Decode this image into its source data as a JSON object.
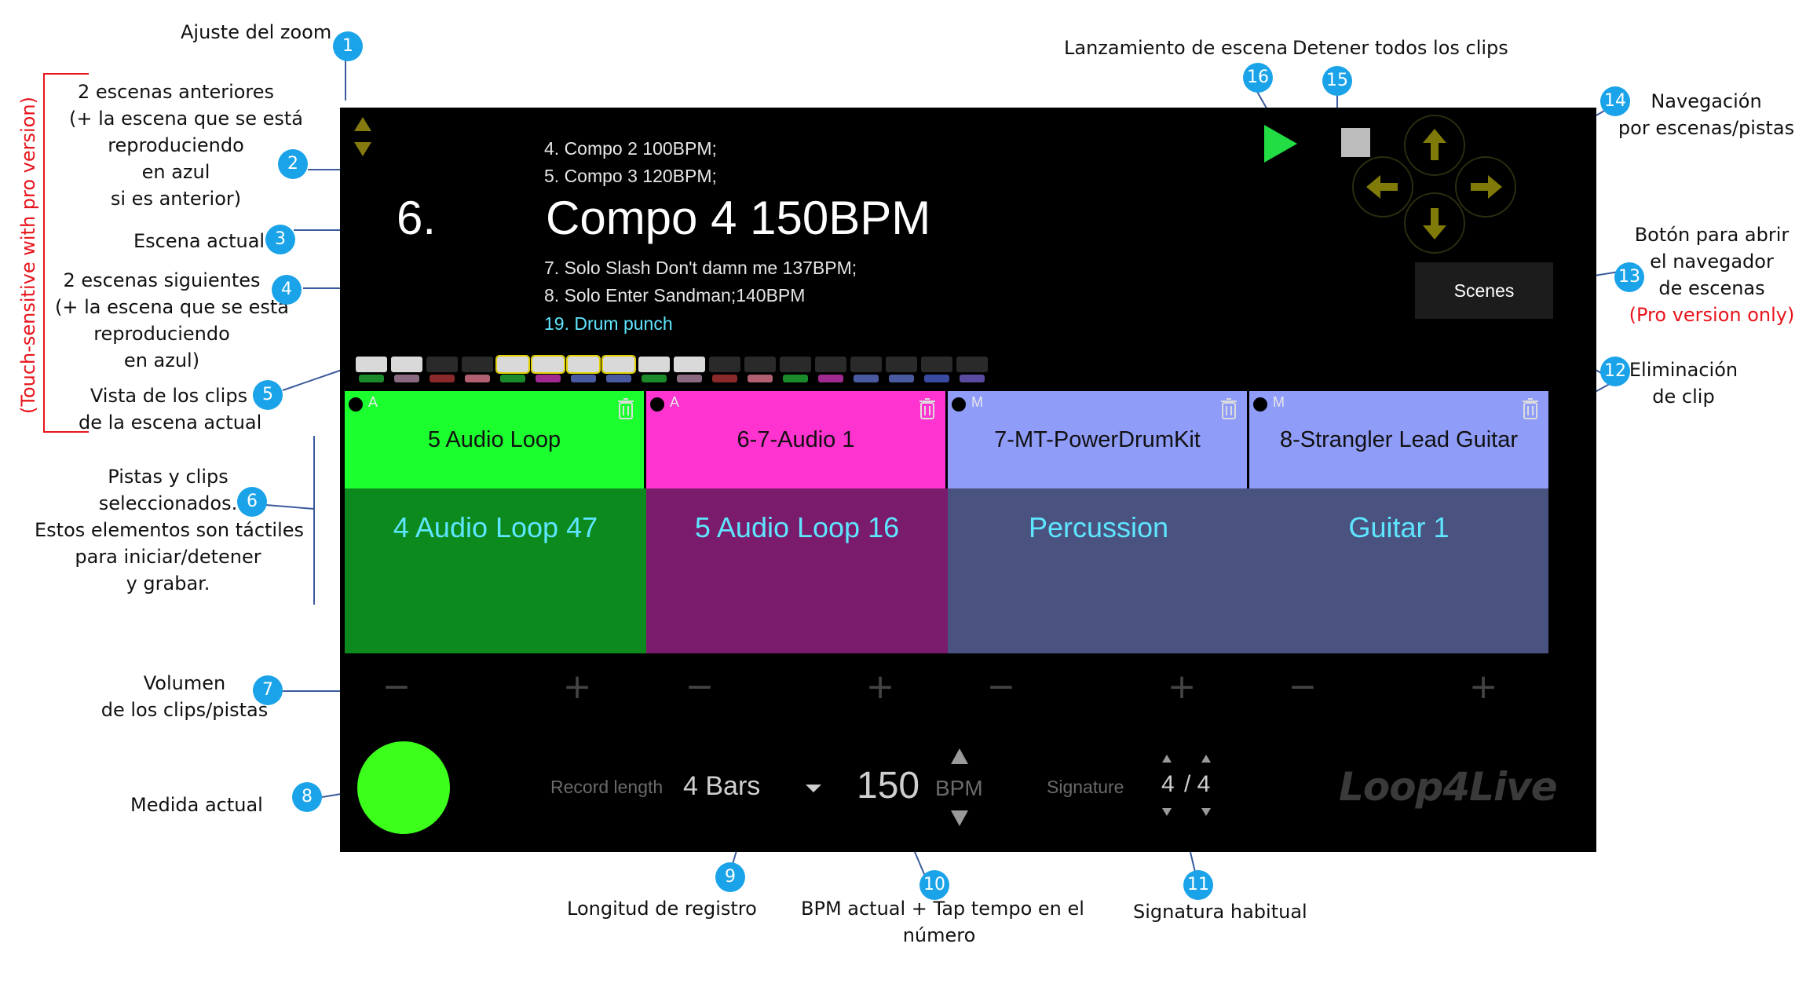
{
  "annotations": {
    "zoom": "Ajuste del zoom",
    "prev_scenes": [
      "2 escenas anteriores",
      "(+ la escena que se está",
      "reproduciendo",
      "en azul",
      "si es anterior)"
    ],
    "current_scene": "Escena actual",
    "next_scenes": [
      "2 escenas siguientes",
      "(+ la escena que se está",
      "reproduciendo",
      "en azul)"
    ],
    "clips_view": [
      "Vista de los clips",
      "de la escena actual"
    ],
    "tracks": [
      "Pistas y clips",
      "seleccionados.",
      "Estos elementos son táctiles",
      "para iniciar/detener",
      "y grabar."
    ],
    "volume": [
      "Volumen",
      "de los clips/pistas"
    ],
    "measure": "Medida actual",
    "record_length": "Longitud de registro",
    "bpm": [
      "BPM actual + Tap tempo en el",
      "número"
    ],
    "signature": "Signatura habitual",
    "scene_launch": "Lanzamiento de escena",
    "stop_all": "Detener todos los clips",
    "navigation": [
      "Navegación",
      "por escenas/pistas"
    ],
    "scene_browser": [
      "Botón para abrir",
      "el navegador",
      "de escenas"
    ],
    "pro_only": "(Pro version only)",
    "clip_delete": [
      "Eliminación",
      "de clip"
    ],
    "touch_sensitive": "(Touch-sensitive with pro version)",
    "badges": [
      "1",
      "2",
      "3",
      "4",
      "5",
      "6",
      "7",
      "8",
      "9",
      "10",
      "11",
      "12",
      "13",
      "14",
      "15",
      "16"
    ]
  },
  "app": {
    "prev_scenes": [
      "4. Compo 2 100BPM;",
      "5. Compo 3 120BPM;"
    ],
    "current_number": "6.",
    "current_name": "Compo 4 150BPM",
    "next_scenes": [
      "7. Solo Slash Don't damn me 137BPM;",
      "8. Solo Enter Sandman;140BPM"
    ],
    "playing_scene": "19. Drum punch",
    "scenes_button": "Scenes",
    "clips": [
      {
        "mode": "A",
        "name": "5 Audio Loop",
        "track": "4 Audio Loop 47",
        "head": "#1cff2e",
        "body": "#0c8a1e"
      },
      {
        "mode": "A",
        "name": "6-7-Audio 1",
        "track": "5 Audio Loop 16",
        "head": "#ff33cf",
        "body": "#7a1c6b"
      },
      {
        "mode": "M",
        "name": "7-MT-PowerDrumKit",
        "track": "Percussion",
        "head": "#8f9cf8",
        "body": "#4a5380"
      },
      {
        "mode": "M",
        "name": "8-Strangler Lead Guitar",
        "track": "Guitar 1",
        "head": "#8f9cf8",
        "body": "#4a5380"
      }
    ],
    "volume_minus": "−",
    "volume_plus": "+",
    "record_length_label": "Record length",
    "record_length_value": "4 Bars",
    "bpm_value": "150",
    "bpm_label": "BPM",
    "signature_label": "Signature",
    "signature_num": "4",
    "signature_den": "/ 4",
    "logo": "Loop4Live",
    "colors": {
      "play": "#22dd44",
      "stop": "#bdbdbd",
      "nav_arrow": "#807a08",
      "measure": "#3dff1c",
      "zoom": "#857a10"
    }
  }
}
